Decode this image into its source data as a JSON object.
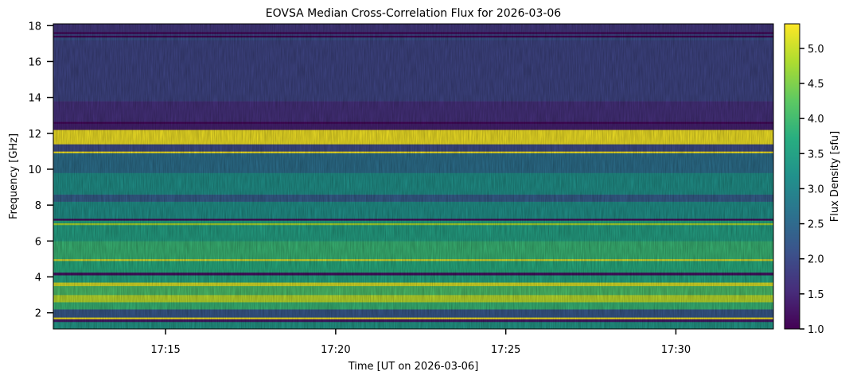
{
  "chart_data": {
    "type": "heatmap",
    "title": "EOVSA Median Cross-Correlation Flux for 2026-03-06",
    "xlabel": "Time [UT on 2026-03-06]",
    "ylabel": "Frequency [GHz]",
    "xlim": [
      "17:11:42",
      "17:32:52"
    ],
    "ylim": [
      1.1,
      18.1
    ],
    "x_ticks": [
      "17:15",
      "17:20",
      "17:25",
      "17:30"
    ],
    "y_ticks": [
      2,
      4,
      6,
      8,
      10,
      12,
      14,
      16,
      18
    ],
    "colormap": "viridis",
    "colorbar": {
      "label": "Flux Density [sfu]",
      "range": [
        1.0,
        5.35
      ],
      "ticks": [
        "1.0",
        "1.5",
        "2.0",
        "2.5",
        "3.0",
        "3.5",
        "4.0",
        "4.5",
        "5.0"
      ]
    },
    "bands": [
      {
        "f_min": 1.1,
        "f_max": 1.5,
        "flux": 3.3
      },
      {
        "f_min": 1.5,
        "f_max": 1.65,
        "flux": 1.3
      },
      {
        "f_min": 1.65,
        "f_max": 1.75,
        "flux": 5.3
      },
      {
        "f_min": 1.75,
        "f_max": 2.2,
        "flux": 2.2
      },
      {
        "f_min": 2.2,
        "f_max": 2.6,
        "flux": 3.9
      },
      {
        "f_min": 2.6,
        "f_max": 3.0,
        "flux": 4.9
      },
      {
        "f_min": 3.0,
        "f_max": 3.5,
        "flux": 4.1
      },
      {
        "f_min": 3.5,
        "f_max": 3.7,
        "flux": 5.1
      },
      {
        "f_min": 3.7,
        "f_max": 4.1,
        "flux": 3.6
      },
      {
        "f_min": 4.1,
        "f_max": 4.25,
        "flux": 1.2
      },
      {
        "f_min": 4.25,
        "f_max": 4.9,
        "flux": 3.7
      },
      {
        "f_min": 4.9,
        "f_max": 5.0,
        "flux": 5.2
      },
      {
        "f_min": 5.0,
        "f_max": 6.0,
        "flux": 3.9
      },
      {
        "f_min": 6.0,
        "f_max": 6.9,
        "flux": 3.5
      },
      {
        "f_min": 6.9,
        "f_max": 7.0,
        "flux": 4.8
      },
      {
        "f_min": 7.0,
        "f_max": 7.15,
        "flux": 3.6
      },
      {
        "f_min": 7.15,
        "f_max": 7.25,
        "flux": 1.1
      },
      {
        "f_min": 7.25,
        "f_max": 8.2,
        "flux": 3.2
      },
      {
        "f_min": 8.2,
        "f_max": 8.6,
        "flux": 2.3
      },
      {
        "f_min": 8.6,
        "f_max": 9.8,
        "flux": 3.2
      },
      {
        "f_min": 9.8,
        "f_max": 10.9,
        "flux": 2.6
      },
      {
        "f_min": 10.9,
        "f_max": 11.0,
        "flux": 5.3
      },
      {
        "f_min": 11.0,
        "f_max": 11.4,
        "flux": 2.0
      },
      {
        "f_min": 11.4,
        "f_max": 12.2,
        "flux": 5.3
      },
      {
        "f_min": 12.2,
        "f_max": 12.55,
        "flux": 1.4
      },
      {
        "f_min": 12.55,
        "f_max": 12.65,
        "flux": 1.05
      },
      {
        "f_min": 12.65,
        "f_max": 13.8,
        "flux": 1.6
      },
      {
        "f_min": 13.8,
        "f_max": 17.2,
        "flux": 1.9
      },
      {
        "f_min": 17.2,
        "f_max": 17.35,
        "flux": 2.1
      },
      {
        "f_min": 17.35,
        "f_max": 17.45,
        "flux": 1.05
      },
      {
        "f_min": 17.45,
        "f_max": 17.55,
        "flux": 1.9
      },
      {
        "f_min": 17.55,
        "f_max": 17.65,
        "flux": 1.05
      },
      {
        "f_min": 17.65,
        "f_max": 18.1,
        "flux": 1.7
      }
    ],
    "grid": false,
    "legend": "colorbar-right"
  }
}
